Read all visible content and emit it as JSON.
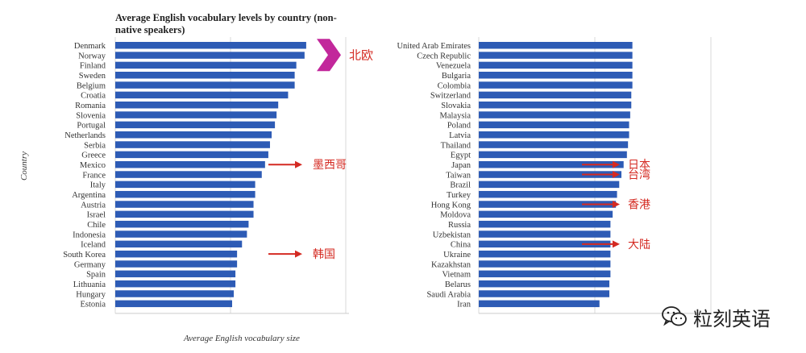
{
  "chart_data": [
    {
      "type": "bar",
      "orientation": "horizontal",
      "title": "Average English vocabulary levels by country (non-native speakers)",
      "xlabel": "Average English vocabulary size",
      "ylabel": "Country",
      "categories": [
        "Denmark",
        "Norway",
        "Finland",
        "Sweden",
        "Belgium",
        "Croatia",
        "Romania",
        "Slovenia",
        "Portugal",
        "Netherlands",
        "Serbia",
        "Greece",
        "Mexico",
        "France",
        "Italy",
        "Argentina",
        "Austria",
        "Israel",
        "Chile",
        "Indonesia",
        "Iceland",
        "South Korea",
        "Germany",
        "Spain",
        "Lithuania",
        "Hungary",
        "Estonia"
      ],
      "values": [
        11600,
        11500,
        11000,
        10900,
        10900,
        10500,
        9900,
        9800,
        9700,
        9500,
        9400,
        9300,
        9100,
        8900,
        8500,
        8500,
        8400,
        8400,
        8100,
        8000,
        7700,
        7400,
        7400,
        7300,
        7300,
        7200,
        7100
      ],
      "xlim": [
        0,
        14200
      ],
      "grid": true,
      "bar_color": "#2d5bb5",
      "annotations": [
        {
          "category": "Denmark",
          "text": "北欧",
          "marker": "chevron"
        },
        {
          "category": "Mexico",
          "text": "墨西哥",
          "marker": "arrow"
        },
        {
          "category": "South Korea",
          "text": "韩国",
          "marker": "arrow"
        }
      ]
    },
    {
      "type": "bar",
      "orientation": "horizontal",
      "categories": [
        "United Arab Emirates",
        "Czech Republic",
        "Venezuela",
        "Bulgaria",
        "Colombia",
        "Switzerland",
        "Slovakia",
        "Malaysia",
        "Poland",
        "Latvia",
        "Thailand",
        "Egypt",
        "Japan",
        "Taiwan",
        "Brazil",
        "Turkey",
        "Hong Kong",
        "Moldova",
        "Russia",
        "Uzbekistan",
        "China",
        "Ukraine",
        "Kazakhstan",
        "Vietnam",
        "Belarus",
        "Saudi Arabia",
        "Iran"
      ],
      "values": [
        7000,
        7000,
        7000,
        7000,
        7000,
        6950,
        6950,
        6900,
        6850,
        6850,
        6800,
        6750,
        6600,
        6500,
        6400,
        6300,
        6250,
        6100,
        6000,
        6000,
        6000,
        6000,
        6000,
        6000,
        5950,
        5950,
        5500
      ],
      "xlim": [
        0,
        10650
      ],
      "grid": true,
      "bar_color": "#2d5bb5",
      "annotations": [
        {
          "category": "Japan",
          "text": "日本",
          "marker": "arrow"
        },
        {
          "category": "Taiwan",
          "text": "台湾",
          "marker": "arrow"
        },
        {
          "category": "Hong Kong",
          "text": "香港",
          "marker": "arrow"
        },
        {
          "category": "China",
          "text": "大陆",
          "marker": "arrow"
        }
      ]
    }
  ],
  "annotation_color": "#d42a22",
  "chevron_color": "#c2279b",
  "watermark": {
    "text": "粒刻英语",
    "icon": "wechat-logo-icon"
  }
}
